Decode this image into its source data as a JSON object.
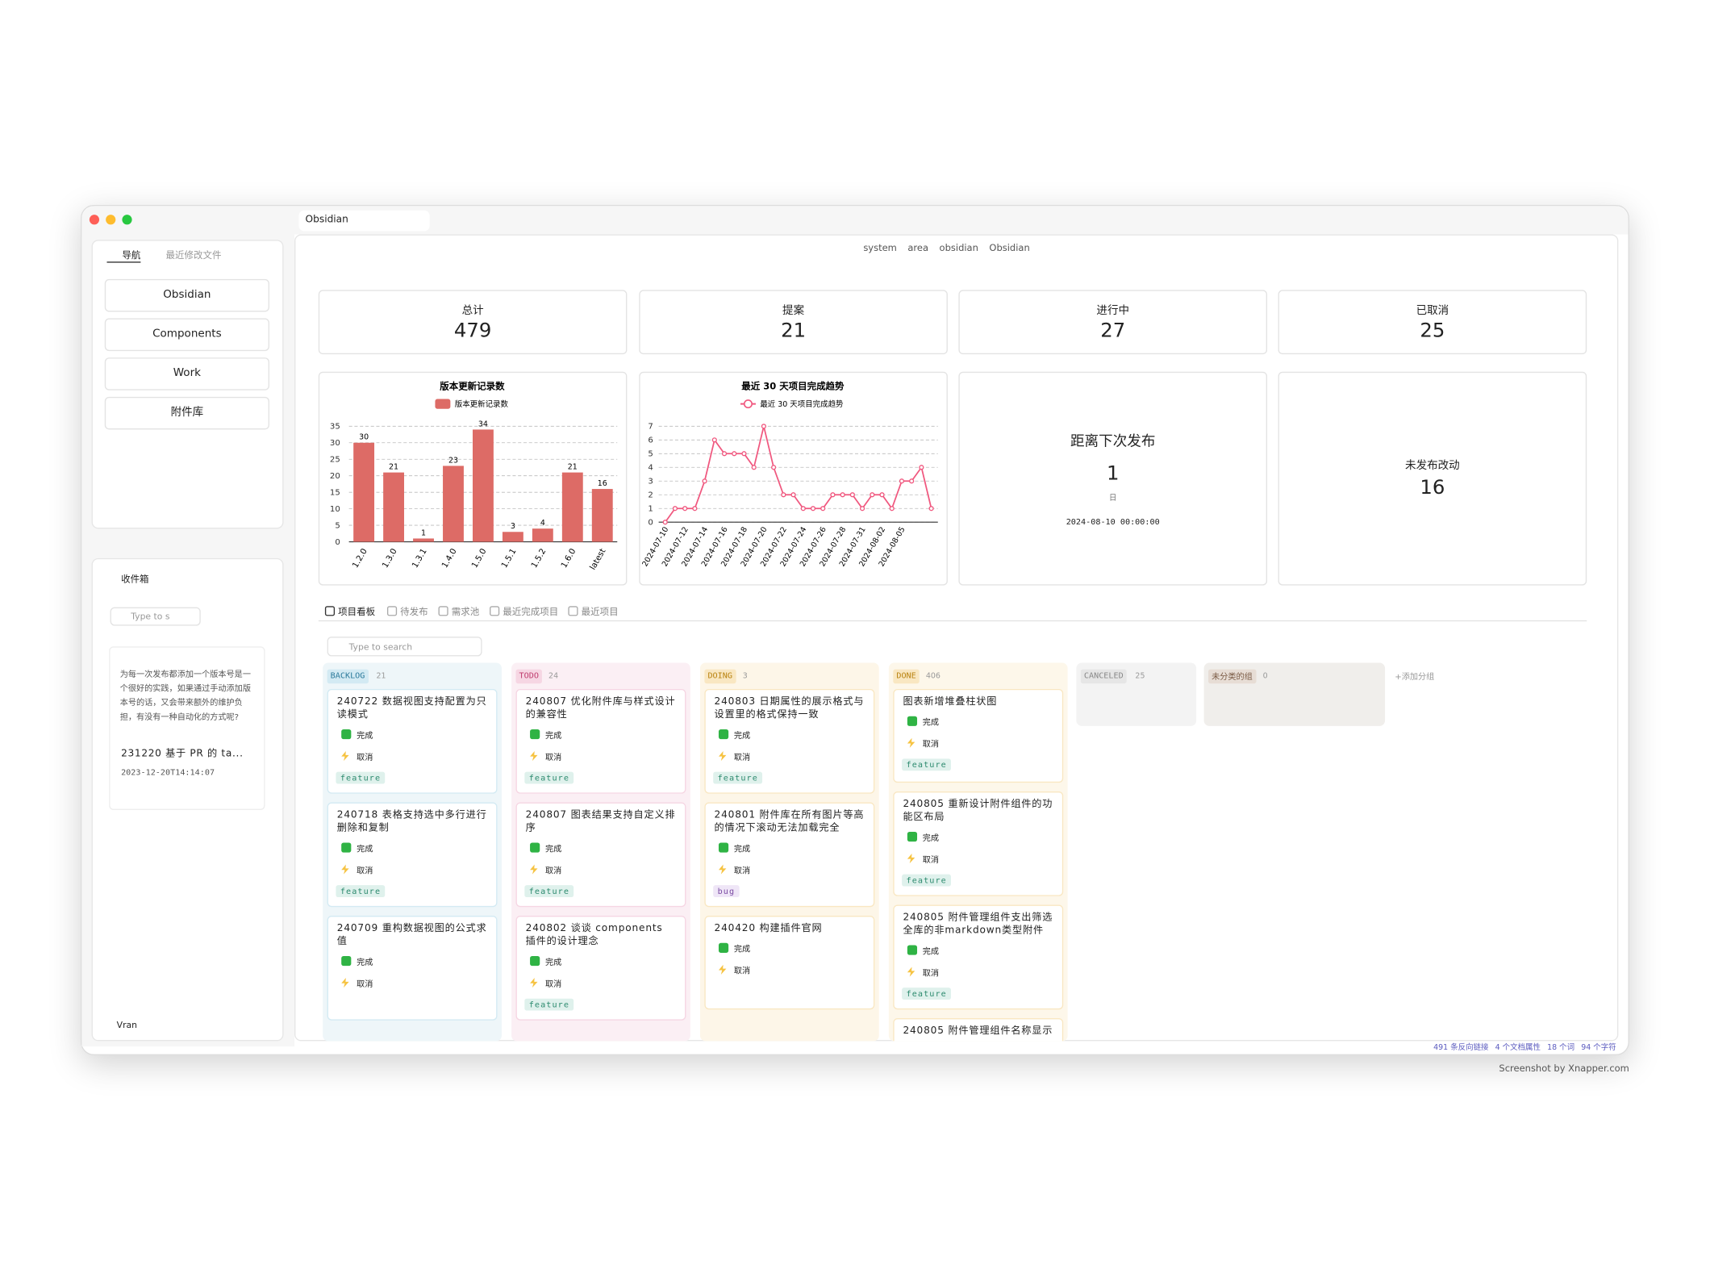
{
  "window": {
    "tab": "Obsidian",
    "breadcrumb": [
      "system",
      "area",
      "obsidian",
      "Obsidian"
    ]
  },
  "sidebar": {
    "tabs": [
      "导航",
      "最近修改文件"
    ],
    "nav": [
      "Obsidian",
      "Components",
      "Work",
      "附件库"
    ],
    "inbox": "收件箱",
    "search": "Type to s",
    "note": {
      "text": "为每一次发布都添加一个版本号是一个很好的实践，如果通过手动添加版本号的话，又会带来额外的维护负担，有没有一种自动化的方式呢?",
      "title": "231220 基于 PR 的 ta...",
      "date": "2023-12-20T14:14:07"
    },
    "user": "Vran"
  },
  "stats": [
    {
      "label": "总计",
      "value": 479
    },
    {
      "label": "提案",
      "value": 21
    },
    {
      "label": "进行中",
      "value": 27
    },
    {
      "label": "已取消",
      "value": 25
    }
  ],
  "chart_data": [
    {
      "type": "bar",
      "title": "版本更新记录数",
      "categories": [
        "1.2.0",
        "1.3.0",
        "1.3.1",
        "1.4.0",
        "1.5.0",
        "1.5.1",
        "1.5.2",
        "1.6.0",
        "latest"
      ],
      "series": [
        {
          "name": "版本更新记录数",
          "color": "#dd6b66",
          "values": [
            30,
            21,
            1,
            23,
            34,
            3,
            4,
            21,
            16
          ]
        }
      ],
      "ylim": [
        0,
        35
      ],
      "yticks": [
        0,
        5,
        10,
        15,
        20,
        25,
        30,
        35
      ],
      "grid": true
    },
    {
      "type": "line",
      "title": "最近 30 天项目完成趋势",
      "categories": [
        "2024-07-10",
        null,
        "2024-07-12",
        null,
        "2024-07-14",
        null,
        "2024-07-16",
        null,
        "2024-07-18",
        null,
        "2024-07-20",
        null,
        "2024-07-22",
        null,
        "2024-07-24",
        null,
        "2024-07-26",
        null,
        "2024-07-28",
        null,
        "2024-07-31",
        null,
        "2024-08-02",
        null,
        "2024-08-05",
        null,
        null,
        null
      ],
      "series": [
        {
          "name": "最近 30 天项目完成趋势",
          "color": "#f0587f",
          "values": [
            0,
            1,
            1,
            1,
            3,
            6,
            5,
            5,
            5,
            4,
            7,
            4,
            2,
            2,
            1,
            1,
            1,
            2,
            2,
            2,
            1,
            2,
            2,
            1,
            3,
            3,
            4,
            1
          ]
        }
      ],
      "ylim": [
        0,
        7
      ],
      "yticks": [
        0,
        1,
        2,
        3,
        4,
        5,
        6,
        7
      ],
      "grid": true
    }
  ],
  "countdown": {
    "title": "距离下次发布",
    "value": 1,
    "unit": "日",
    "date": "2024-08-10 00:00:00"
  },
  "unreleased": {
    "label": "未发布改动",
    "value": 16
  },
  "view_tabs": [
    "项目看板",
    "待发布",
    "需求池",
    "最近完成项目",
    "最近项目"
  ],
  "board": {
    "search": "Type to search",
    "add_group": "+添加分组",
    "columns": [
      {
        "name": "BACKLOG",
        "count": 21,
        "cards": [
          {
            "title": "240722 数据视图支持配置为只读模式",
            "done": "完成",
            "cancel": "取消",
            "tag": "feature"
          },
          {
            "title": "240718 表格支持选中多行进行删除和复制",
            "done": "完成",
            "cancel": "取消",
            "tag": "feature"
          },
          {
            "title": "240709 重构数据视图的公式求值",
            "done": "完成",
            "cancel": "取消"
          }
        ]
      },
      {
        "name": "TODO",
        "count": 24,
        "cards": [
          {
            "title": "240807 优化附件库与样式设计的兼容性",
            "done": "完成",
            "cancel": "取消",
            "tag": "feature"
          },
          {
            "title": "240807 图表结果支持自定义排序",
            "done": "完成",
            "cancel": "取消",
            "tag": "feature"
          },
          {
            "title": "240802 谈谈 components 插件的设计理念",
            "done": "完成",
            "cancel": "取消",
            "tag": "feature"
          }
        ]
      },
      {
        "name": "DOING",
        "count": 3,
        "cards": [
          {
            "title": "240803 日期属性的展示格式与设置里的格式保持一致",
            "done": "完成",
            "cancel": "取消",
            "tag": "feature"
          },
          {
            "title": "240801 附件库在所有图片等高的情况下滚动无法加载完全",
            "done": "完成",
            "cancel": "取消",
            "tag": "bug"
          },
          {
            "title": "240420 构建插件官网",
            "done": "完成",
            "cancel": "取消"
          }
        ]
      },
      {
        "name": "DONE",
        "count": 406,
        "cards": [
          {
            "title": "图表新增堆叠柱状图",
            "done": "完成",
            "cancel": "取消",
            "tag": "feature"
          },
          {
            "title": "240805 重新设计附件组件的功能区布局",
            "done": "完成",
            "cancel": "取消",
            "tag": "feature"
          },
          {
            "title": "240805 附件管理组件支出筛选全库的非markdown类型附件",
            "done": "完成",
            "cancel": "取消",
            "tag": "feature"
          },
          {
            "title": "240805 附件管理组件名称显示"
          }
        ]
      },
      {
        "name": "CANCELED",
        "count": 25,
        "cards": []
      },
      {
        "name": "未分类的组",
        "count": 0,
        "cards": []
      }
    ]
  },
  "status_bar": [
    "491 条反向链接",
    "4 个文档属性",
    "18 个词",
    "94 个字符"
  ],
  "watermark": "Screenshot by Xnapper.com"
}
